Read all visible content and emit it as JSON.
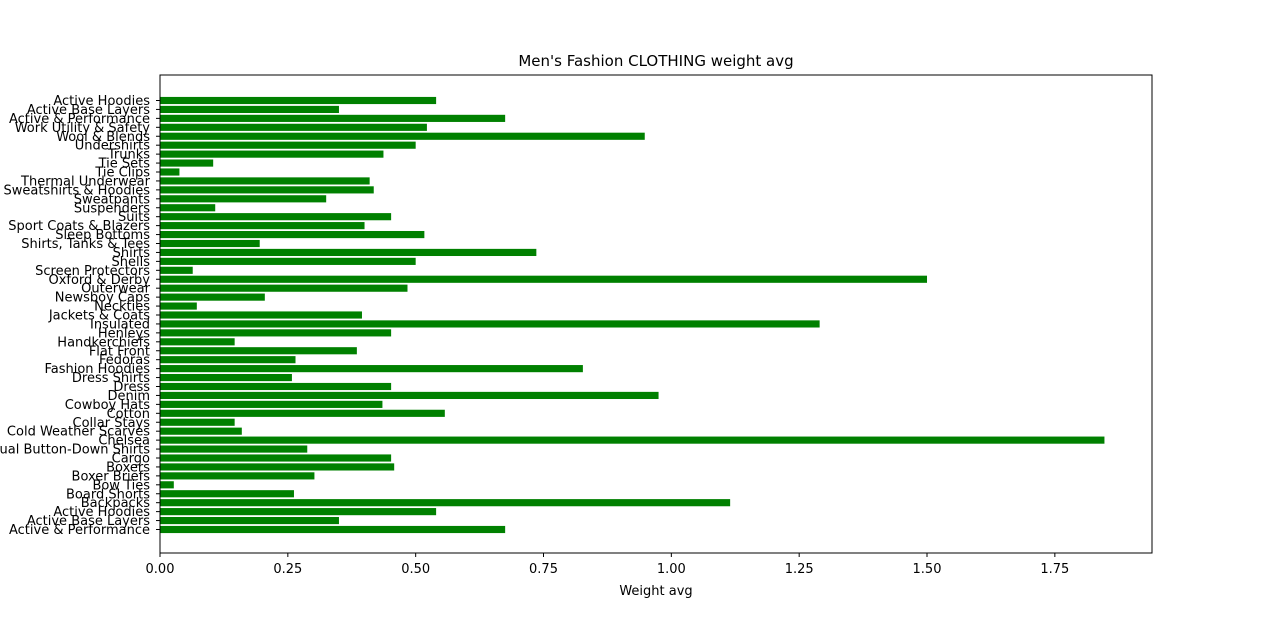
{
  "chart_data": {
    "type": "bar",
    "orientation": "horizontal",
    "title": "Men's Fashion CLOTHING weight avg",
    "xlabel": "Weight avg",
    "ylabel": "",
    "xlim": [
      0,
      1.94
    ],
    "xticks": [
      "0.00",
      "0.25",
      "0.50",
      "0.75",
      "1.00",
      "1.25",
      "1.50",
      "1.75"
    ],
    "grid": false,
    "legend": "none",
    "bar_color": "#008000",
    "categories": [
      "Active & Performance",
      "Active Base Layers",
      "Active Hoodies",
      "Backpacks",
      "Board Shorts",
      "Bow Ties",
      "Boxer Briefs",
      "Boxers",
      "Cargo",
      "Casual Button-Down Shirts",
      "Chelsea",
      "Cold Weather Scarves",
      "Collar Stays",
      "Cotton",
      "Cowboy Hats",
      "Denim",
      "Dress",
      "Dress Shirts",
      "Fashion Hoodies",
      "Fedoras",
      "Flat Front",
      "Handkerchiefs",
      "Henleys",
      "Insulated",
      "Jackets & Coats",
      "Neckties",
      "Newsboy Caps",
      "Outerwear",
      "Oxford & Derby",
      "Screen Protectors",
      "Shells",
      "Shirts",
      "Shirts, Tanks & Tees",
      "Sleep Bottoms",
      "Sport Coats & Blazers",
      "Suits",
      "Suspenders",
      "Sweatpants",
      "Sweatshirts & Hoodies",
      "Thermal Underwear",
      "Tie Clips",
      "Tie Sets",
      "Trunks",
      "Undershirts",
      "Wool & Blends",
      "Work Utility & Safety",
      "Active & Performance",
      "Active Base Layers",
      "Active Hoodies"
    ],
    "values": [
      0.675,
      0.35,
      0.54,
      1.115,
      0.262,
      0.027,
      0.302,
      0.458,
      0.452,
      0.288,
      1.847,
      0.16,
      0.146,
      0.557,
      0.435,
      0.975,
      0.452,
      0.258,
      0.827,
      0.265,
      0.385,
      0.146,
      0.452,
      1.29,
      0.395,
      0.072,
      0.205,
      0.484,
      1.5,
      0.064,
      0.5,
      0.736,
      0.195,
      0.517,
      0.4,
      0.452,
      0.108,
      0.325,
      0.418,
      0.41,
      0.038,
      0.104,
      0.437,
      0.5,
      0.948,
      0.522,
      0.675,
      0.35,
      0.54
    ]
  }
}
